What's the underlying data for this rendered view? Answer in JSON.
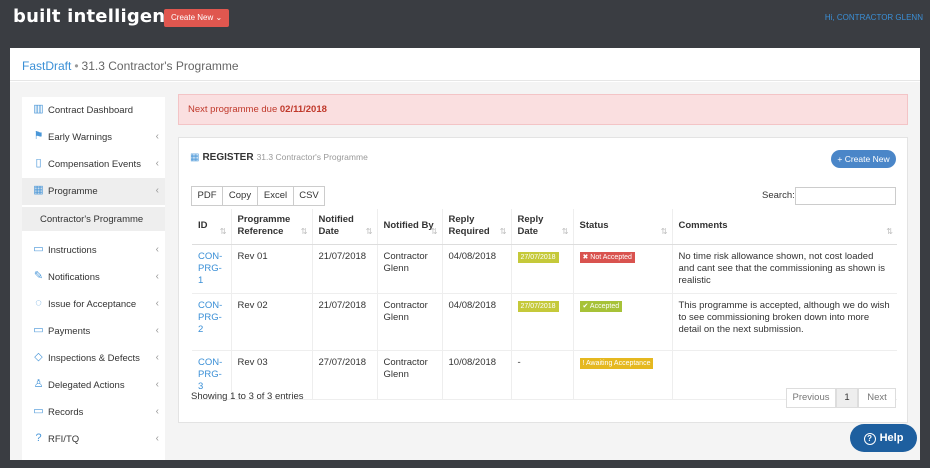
{
  "header": {
    "brand": "built intelligence",
    "create_label": "Create New ⌄",
    "user_label": "Hi, CONTRACTOR GLENN"
  },
  "breadcrumb": {
    "app": "FastDraft",
    "separator": "•",
    "page": "31.3 Contractor's Programme"
  },
  "sidebar": {
    "items": [
      {
        "label": "Contract Dashboard",
        "icon": "bar-chart-icon",
        "glyph": "▥",
        "chevron": ""
      },
      {
        "label": "Early Warnings",
        "icon": "flag-icon",
        "glyph": "⚑",
        "chevron": "‹"
      },
      {
        "label": "Compensation Events",
        "icon": "file-icon",
        "glyph": "▯",
        "chevron": "‹"
      },
      {
        "label": "Programme",
        "icon": "calendar-icon",
        "glyph": "▦",
        "chevron": "‹"
      },
      {
        "label": "Instructions",
        "icon": "message-icon",
        "glyph": "▭",
        "chevron": "‹"
      },
      {
        "label": "Notifications",
        "icon": "pencil-icon",
        "glyph": "✎",
        "chevron": "‹"
      },
      {
        "label": "Issue for Acceptance",
        "icon": "chat-icon",
        "glyph": "◌",
        "chevron": "‹"
      },
      {
        "label": "Payments",
        "icon": "card-icon",
        "glyph": "▭",
        "chevron": "‹"
      },
      {
        "label": "Inspections & Defects",
        "icon": "tag-icon",
        "glyph": "◇",
        "chevron": "‹"
      },
      {
        "label": "Delegated Actions",
        "icon": "users-icon",
        "glyph": "♙",
        "chevron": "‹"
      },
      {
        "label": "Records",
        "icon": "folder-icon",
        "glyph": "▭",
        "chevron": "‹"
      },
      {
        "label": "RFI/TQ",
        "icon": "question-icon",
        "glyph": "?",
        "chevron": "‹"
      }
    ],
    "sub_item": "Contractor's Programme"
  },
  "alert": {
    "text": "Next programme due ",
    "date": "02/11/2018"
  },
  "register": {
    "title": "REGISTER",
    "subtitle": "31.3 Contractor's Programme",
    "create_label": "+ Create New",
    "export_buttons": [
      "PDF",
      "Copy",
      "Excel",
      "CSV"
    ],
    "search_label": "Search:",
    "search_value": "",
    "sort_glyph": "⇅",
    "columns": [
      "ID",
      "Programme Reference",
      "Notified Date",
      "Notified By",
      "Reply Required",
      "Reply Date",
      "Status",
      "Comments"
    ],
    "rows": [
      {
        "id": "CON-PRG-1",
        "ref": "Rev 01",
        "notified": "21/07/2018",
        "by": "Contractor Glenn",
        "required": "04/08/2018",
        "reply": "27/07/2018",
        "status": "✖ Not Accepted",
        "status_kind": "na",
        "comments": "No time risk allowance shown, not cost loaded and cant see that the commissioning as shown is realistic"
      },
      {
        "id": "CON-PRG-2",
        "ref": "Rev 02",
        "notified": "21/07/2018",
        "by": "Contractor Glenn",
        "required": "04/08/2018",
        "reply": "27/07/2018",
        "status": "✔ Accepted",
        "status_kind": "acc",
        "comments": "This programme is accepted, although we do wish to see commissioning broken down into more detail on the next submission."
      },
      {
        "id": "CON-PRG-3",
        "ref": "Rev 03",
        "notified": "27/07/2018",
        "by": "Contractor Glenn",
        "required": "10/08/2018",
        "reply": "-",
        "status": "! Awaiting Acceptance",
        "status_kind": "aw",
        "comments": ""
      }
    ],
    "entries_text": "Showing 1 to 3 of 3 entries",
    "pager": {
      "prev": "Previous",
      "page": "1",
      "next": "Next"
    }
  },
  "help_label": "Help",
  "colors": {
    "brand_red": "#e0574f",
    "link_blue": "#3a8fd6",
    "alert_bg": "#fadfe0",
    "help_blue": "#1e5f9f"
  }
}
